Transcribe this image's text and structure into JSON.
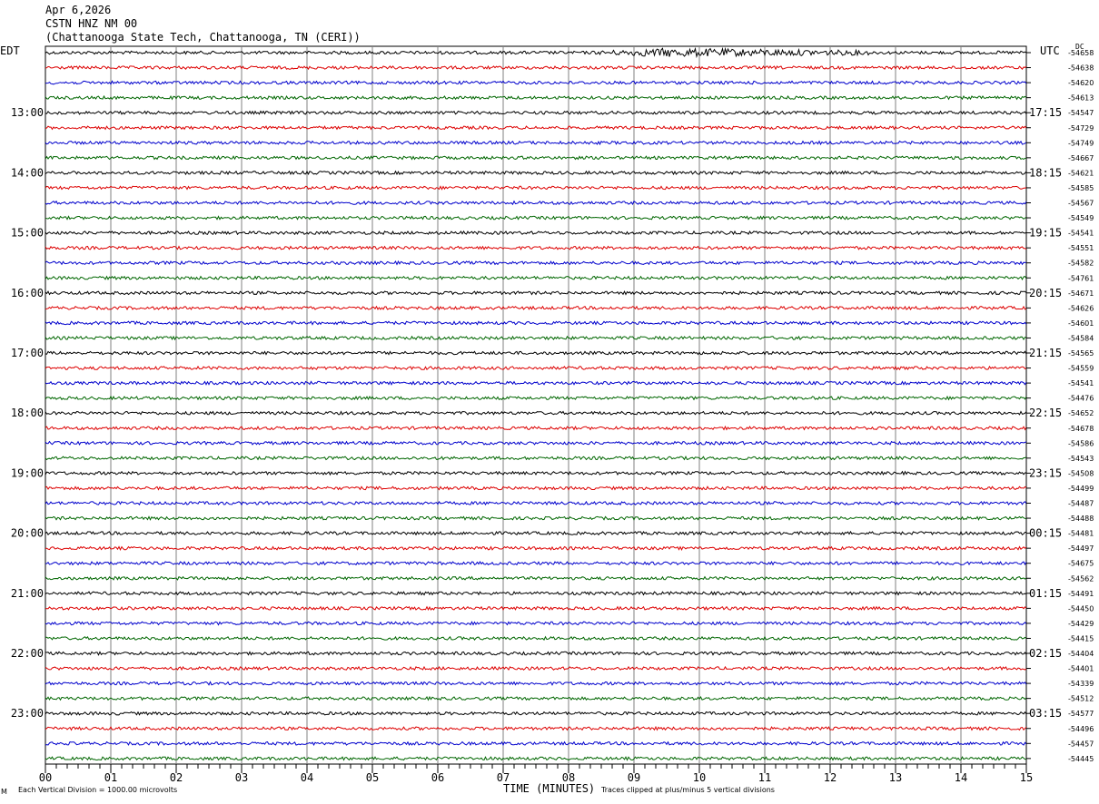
{
  "header": {
    "date": "Apr 6,2026",
    "station": "CSTN HNZ NM 00",
    "location": "(Chattanooga State Tech, Chattanooga, TN (CERI))"
  },
  "labels": {
    "left_tz": "EDT",
    "right_tz": "UTC",
    "dc": "DC"
  },
  "footer": {
    "corner": "M",
    "scale_note": "Each Vertical Division = 1000.00 microvolts",
    "xlabel": "TIME (MINUTES)",
    "clip_note": "Traces clipped at plus/minus 5 vertical divisions"
  },
  "colors": {
    "trace_cycle": [
      "#000000",
      "#dd0000",
      "#0000cc",
      "#006600"
    ],
    "grid": "#808080"
  },
  "chart_data": {
    "type": "line",
    "x_ticks": [
      "00",
      "01",
      "02",
      "03",
      "04",
      "05",
      "06",
      "07",
      "08",
      "09",
      "10",
      "11",
      "12",
      "13",
      "14",
      "15"
    ],
    "xlim": [
      0,
      15
    ],
    "left_hour_labels": [
      "13:00",
      "14:00",
      "15:00",
      "16:00",
      "17:00",
      "18:00",
      "19:00",
      "20:00",
      "21:00",
      "22:00",
      "23:00"
    ],
    "right_hour_labels": [
      "17:15",
      "18:15",
      "19:15",
      "20:15",
      "21:15",
      "22:15",
      "23:15",
      "00:15",
      "01:15",
      "02:15",
      "03:15"
    ],
    "dc_offsets": [
      -54658,
      -54638,
      -54620,
      -54613,
      -54547,
      -54729,
      -54749,
      -54667,
      -54621,
      -54585,
      -54567,
      -54549,
      -54541,
      -54551,
      -54582,
      -54761,
      -54671,
      -54626,
      -54601,
      -54584,
      -54565,
      -54559,
      -54541,
      -54476,
      -54652,
      -54678,
      -54586,
      -54543,
      -54508,
      -54499,
      -54487,
      -54488,
      -54481,
      -54497,
      -54675,
      -54562,
      -54491,
      -54450,
      -54429,
      -54415,
      -54404,
      -54401,
      -54339,
      -54512,
      -54577,
      -54496,
      -54457,
      -54445
    ],
    "events": [
      {
        "trace_index": 0,
        "x_start": 8.3,
        "x_end": 12.6,
        "peak_x": 9.5
      }
    ]
  }
}
